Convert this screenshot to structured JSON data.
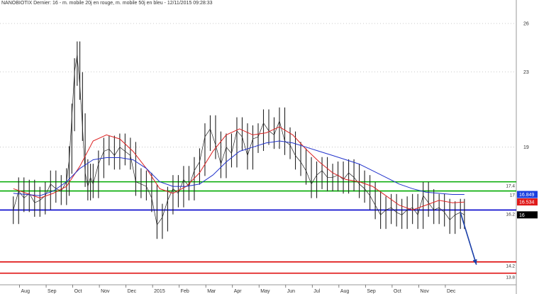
{
  "chart_data": {
    "type": "line",
    "title": "NANOBIOTIX Dernier: 16 - m. mobile 20j en rouge, m. mobile 50j en bleu - 12/11/2015 09:28:33",
    "ylim": [
      13.4,
      27.2
    ],
    "y_scale": "log",
    "y_ticks": [
      26,
      23,
      19
    ],
    "x_ticks": [
      {
        "label": "Aug",
        "x": 0.5
      },
      {
        "label": "Sep",
        "x": 1.5
      },
      {
        "label": "Oct",
        "x": 2.5
      },
      {
        "label": "Nov",
        "x": 3.5
      },
      {
        "label": "Dec",
        "x": 4.5
      },
      {
        "label": "2015",
        "x": 5.5
      },
      {
        "label": "Feb",
        "x": 6.5
      },
      {
        "label": "Mar",
        "x": 7.5
      },
      {
        "label": "Apr",
        "x": 8.5
      },
      {
        "label": "May",
        "x": 9.5
      },
      {
        "label": "Jun",
        "x": 10.5
      },
      {
        "label": "Jul",
        "x": 11.5
      },
      {
        "label": "Aug",
        "x": 12.5
      },
      {
        "label": "Sep",
        "x": 13.5
      },
      {
        "label": "Oct",
        "x": 14.5
      },
      {
        "label": "Nov",
        "x": 15.5
      },
      {
        "label": "Dec",
        "x": 16.5
      }
    ],
    "xlim": [
      -0.5,
      18.9
    ],
    "grid": "horizontal dotted",
    "levels": [
      {
        "name": "resistance",
        "value": 17.4,
        "label": "17.4",
        "color": "#00aa00"
      },
      {
        "name": "resistance",
        "value": 17.0,
        "label": "17",
        "color": "#00aa00"
      },
      {
        "name": "support",
        "value": 16.2,
        "label": "16.2",
        "color": "#0000cc"
      },
      {
        "name": "target",
        "value": 14.2,
        "label": "14.2",
        "color": "#dd0000"
      },
      {
        "name": "target",
        "value": 13.8,
        "label": "13.8",
        "color": "#dd0000"
      }
    ],
    "value_tags": [
      {
        "label": "16.849",
        "value": 16.849,
        "bg": "#1a3fe0",
        "fg": "#ffffff"
      },
      {
        "label": "16.534",
        "value": 16.534,
        "bg": "#e01a1a",
        "fg": "#ffffff"
      },
      {
        "label": "16",
        "value": 16.0,
        "bg": "#000000",
        "fg": "#ffffff"
      }
    ],
    "series": [
      {
        "name": "price",
        "color": "#222222",
        "x": [
          0,
          0.2,
          0.4,
          0.6,
          0.8,
          1.0,
          1.2,
          1.4,
          1.6,
          1.8,
          2.0,
          2.1,
          2.2,
          2.3,
          2.4,
          2.5,
          2.6,
          2.7,
          2.8,
          2.9,
          3.0,
          3.2,
          3.4,
          3.6,
          3.8,
          4.0,
          4.2,
          4.4,
          4.6,
          4.8,
          5.0,
          5.2,
          5.4,
          5.6,
          5.8,
          6.0,
          6.2,
          6.4,
          6.6,
          6.8,
          7.0,
          7.2,
          7.4,
          7.6,
          7.8,
          8.0,
          8.2,
          8.4,
          8.6,
          8.8,
          9.0,
          9.2,
          9.4,
          9.6,
          9.8,
          10.0,
          10.2,
          10.4,
          10.6,
          10.8,
          11.0,
          11.2,
          11.4,
          11.6,
          11.8,
          12.0,
          12.2,
          12.4,
          12.6,
          12.8,
          13.0,
          13.2,
          13.4,
          13.6,
          13.8,
          14.0,
          14.2,
          14.4,
          14.6,
          14.8,
          15.0,
          15.2,
          15.4,
          15.6,
          15.8,
          16.0,
          16.2,
          16.4,
          16.6,
          16.8,
          16.95
        ],
        "y": [
          16.2,
          17.0,
          16.7,
          16.9,
          16.5,
          16.6,
          16.8,
          17.3,
          17.1,
          17.0,
          17.4,
          18.4,
          20.5,
          23.0,
          24.0,
          22.2,
          20.0,
          17.8,
          17.2,
          17.6,
          17.3,
          18.2,
          18.8,
          18.9,
          18.6,
          19.0,
          18.8,
          18.6,
          17.4,
          17.3,
          17.2,
          16.7,
          15.6,
          15.9,
          16.6,
          17.1,
          16.9,
          17.5,
          17.2,
          17.9,
          18.3,
          19.5,
          19.9,
          19.1,
          18.2,
          19.0,
          18.7,
          19.8,
          19.5,
          18.6,
          19.4,
          19.5,
          20.2,
          19.8,
          19.6,
          20.3,
          19.3,
          19.1,
          18.6,
          18.3,
          17.9,
          17.3,
          17.7,
          17.9,
          17.6,
          17.6,
          17.7,
          17.5,
          17.8,
          17.6,
          17.3,
          17.1,
          16.8,
          16.4,
          16.0,
          16.2,
          16.3,
          16.1,
          16.0,
          16.2,
          16.3,
          16.0,
          16.8,
          16.5,
          16.2,
          16.3,
          16.1,
          15.8,
          16.0,
          16.1,
          16.0
        ]
      },
      {
        "name": "m. mobile 20j",
        "color": "#dd2222",
        "x": [
          0,
          0.5,
          1.0,
          1.5,
          2.0,
          2.5,
          3.0,
          3.5,
          4.0,
          4.5,
          5.0,
          5.5,
          6.0,
          6.5,
          7.0,
          7.5,
          8.0,
          8.5,
          9.0,
          9.5,
          10.0,
          10.5,
          11.0,
          11.5,
          12.0,
          12.5,
          13.0,
          13.5,
          14.0,
          14.5,
          15.0,
          15.5,
          16.0,
          16.5,
          16.95
        ],
        "y": [
          17.1,
          16.9,
          16.7,
          16.9,
          17.2,
          18.1,
          19.3,
          19.6,
          19.4,
          18.8,
          18.0,
          17.1,
          16.9,
          17.2,
          17.8,
          18.8,
          19.6,
          19.9,
          19.6,
          19.7,
          20.0,
          19.6,
          18.9,
          18.3,
          17.8,
          17.5,
          17.4,
          17.2,
          16.8,
          16.4,
          16.2,
          16.4,
          16.6,
          16.5,
          16.53
        ]
      },
      {
        "name": "m. mobile 50j",
        "color": "#2233cc",
        "x": [
          0,
          0.5,
          1.0,
          1.5,
          2.0,
          2.5,
          3.0,
          3.5,
          4.0,
          4.5,
          5.0,
          5.5,
          6.0,
          6.5,
          7.0,
          7.5,
          8.0,
          8.5,
          9.0,
          9.5,
          10.0,
          10.5,
          11.0,
          11.5,
          12.0,
          12.5,
          13.0,
          13.5,
          14.0,
          14.5,
          15.0,
          15.5,
          16.0,
          16.5,
          16.95
        ],
        "y": [
          16.9,
          16.85,
          16.8,
          17.0,
          17.4,
          18.0,
          18.4,
          18.5,
          18.5,
          18.4,
          18.0,
          17.4,
          17.2,
          17.2,
          17.3,
          17.7,
          18.3,
          18.8,
          19.0,
          19.2,
          19.3,
          19.2,
          19.0,
          18.8,
          18.6,
          18.4,
          18.2,
          17.9,
          17.6,
          17.3,
          17.1,
          16.95,
          16.9,
          16.85,
          16.85
        ]
      }
    ],
    "arrow": {
      "from": [
        16.8,
        16.1
      ],
      "to": [
        17.4,
        14.1
      ],
      "color": "#1a3fa8"
    }
  }
}
